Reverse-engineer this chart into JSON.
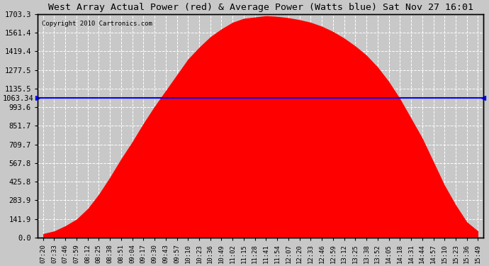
{
  "title": "West Array Actual Power (red) & Average Power (Watts blue) Sat Nov 27 16:01",
  "copyright": "Copyright 2010 Cartronics.com",
  "avg_power": 1063.34,
  "y_max": 1703.3,
  "yticks": [
    0.0,
    141.9,
    283.9,
    425.8,
    567.8,
    709.7,
    851.7,
    993.6,
    1135.5,
    1277.5,
    1419.4,
    1561.4,
    1703.3
  ],
  "background_color": "#c8c8c8",
  "plot_bg_color": "#c8c8c8",
  "bar_color": "#ff0000",
  "avg_line_color": "#0000ff",
  "grid_color": "#ffffff",
  "title_color": "#000000",
  "xtick_labels": [
    "07:20",
    "07:33",
    "07:46",
    "07:59",
    "08:12",
    "08:25",
    "08:38",
    "08:51",
    "09:04",
    "09:17",
    "09:30",
    "09:43",
    "09:57",
    "10:10",
    "10:23",
    "10:36",
    "10:49",
    "11:02",
    "11:15",
    "11:28",
    "11:41",
    "11:54",
    "12:07",
    "12:20",
    "12:33",
    "12:46",
    "12:59",
    "13:12",
    "13:25",
    "13:38",
    "13:52",
    "14:05",
    "14:18",
    "14:31",
    "14:44",
    "14:57",
    "15:10",
    "15:23",
    "15:36",
    "15:49"
  ],
  "power_values": [
    30,
    50,
    90,
    140,
    220,
    330,
    460,
    600,
    730,
    870,
    1000,
    1120,
    1240,
    1360,
    1450,
    1530,
    1590,
    1640,
    1670,
    1680,
    1690,
    1685,
    1675,
    1660,
    1640,
    1610,
    1570,
    1520,
    1460,
    1390,
    1300,
    1190,
    1060,
    910,
    760,
    580,
    400,
    250,
    120,
    50
  ]
}
